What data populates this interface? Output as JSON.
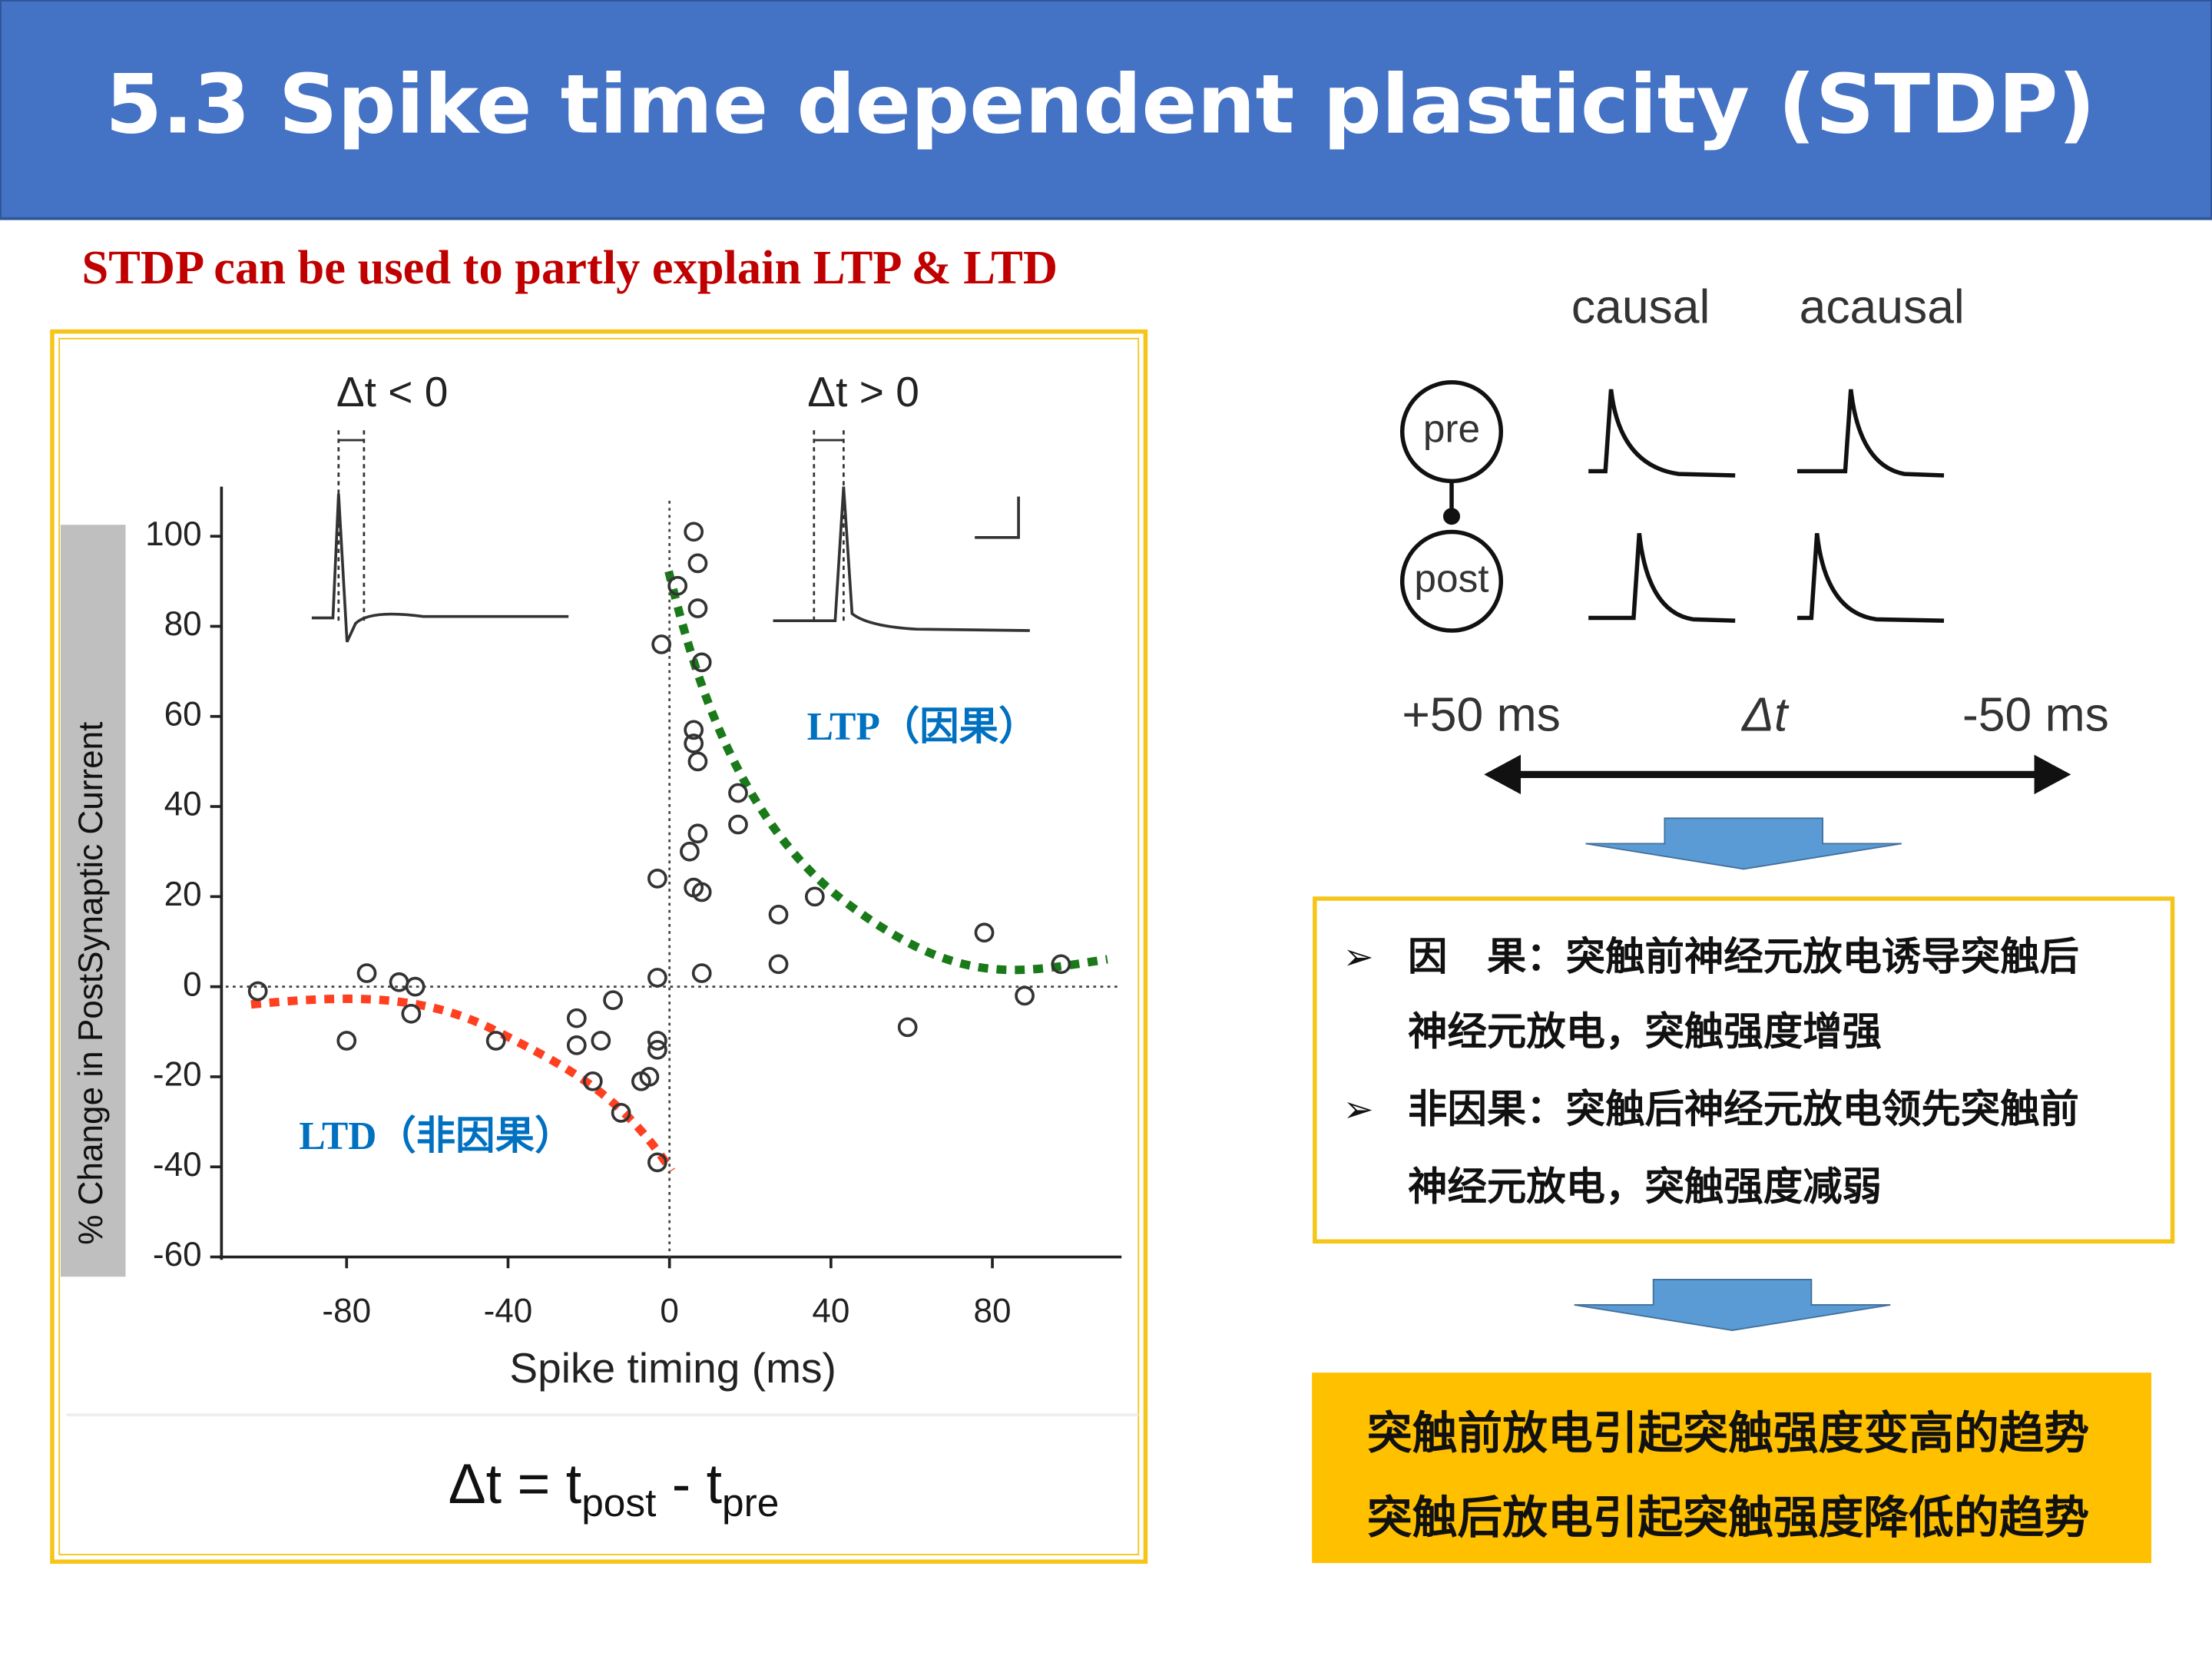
{
  "title": "5.3 Spike time dependent plasticity (STDP)",
  "subtitle": "STDP can be used to partly explain LTP & LTD",
  "chart_data": {
    "type": "scatter",
    "x_label": "Spike timing (ms)",
    "y_label": "% Change in PostSynaptic Current",
    "annotations": [
      "Δt < 0",
      "Δt > 0",
      "LTP（因果）",
      "LTD（非因果）"
    ],
    "x": [
      -102,
      -80,
      -75,
      -67,
      -63,
      -64,
      -43,
      -23,
      -23,
      -17,
      -14,
      -19,
      -12,
      -7,
      -5,
      -3,
      -3,
      -3,
      -3,
      -3,
      -2,
      2,
      6,
      7,
      7,
      8,
      6,
      7,
      6,
      5,
      7,
      6,
      8,
      8,
      17,
      17,
      27,
      27,
      36,
      59,
      78,
      88,
      97
    ],
    "values": [
      -1,
      -12,
      3,
      1,
      0,
      -6,
      -12,
      -7,
      -13,
      -12,
      -3,
      -21,
      -28,
      -21,
      -20,
      -12,
      -14,
      -39,
      2,
      24,
      76,
      89,
      101,
      94,
      84,
      72,
      57,
      50,
      54,
      30,
      34,
      22,
      21,
      3,
      43,
      36,
      16,
      5,
      20,
      -9,
      12,
      -2,
      5
    ],
    "xlim": [
      -111,
      112
    ],
    "ylim": [
      -60,
      111
    ],
    "xticks": [
      -80,
      -40,
      0,
      40,
      80
    ],
    "yticks": [
      -60,
      -40,
      -20,
      0,
      20,
      40,
      60,
      80,
      100
    ],
    "color": "#333333"
  },
  "formula": {
    "main": "Δt = t",
    "sub1": "post",
    "mid": " - t",
    "sub2": "pre"
  },
  "diagram": {
    "causal": "causal",
    "acausal": "acausal",
    "pre": "pre",
    "post": "post",
    "left": "+50 ms",
    "center": "Δt",
    "right": "-50 ms"
  },
  "bullets": [
    [
      "因　果：突触前神经元放电诱导突触后",
      "神经元放电，突触强度增强"
    ],
    [
      "非因果：突触后神经元放电领先突触前",
      "神经元放电，突触强度减弱"
    ]
  ],
  "conclusion": [
    "突触前放电引起突触强度变高的趋势",
    "突触后放电引起突触强度降低的趋势"
  ]
}
